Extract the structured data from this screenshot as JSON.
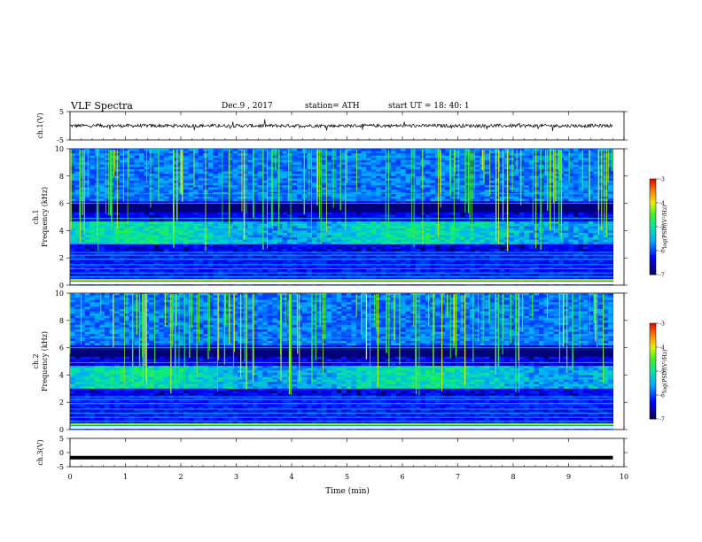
{
  "header": {
    "title": "VLF Spectra",
    "date": "Dec.9 , 2017",
    "station": "station= ATH",
    "start": "start UT = 18: 40: 1"
  },
  "colorbar_label": "log(PSD)(V²/Hz)",
  "colors": {
    "spectrogram_background": "#00007a",
    "trace": "#000000"
  },
  "chart_data": [
    {
      "type": "line",
      "name": "ch1-waveform",
      "ylabel": "ch.1(V)",
      "ylim": [
        -5,
        5
      ],
      "y_ticks": [
        "5",
        "-5"
      ],
      "xlim": [
        0,
        10
      ],
      "description_values": {
        "baseline": 0,
        "noise_amplitude": 0.6
      }
    },
    {
      "type": "heatmap",
      "name": "ch1-spectrogram",
      "ylabel": "ch.1\nFrequency (kHz)",
      "ylim": [
        0,
        10
      ],
      "y_ticks": [
        "0",
        "2",
        "4",
        "6",
        "8",
        "10"
      ],
      "xlim": [
        0,
        10
      ],
      "data_end_min": 9.8,
      "colorbar": {
        "min": -7,
        "max": -3,
        "ticks": [
          "-3",
          "-4",
          "-5",
          "-6",
          "-7"
        ]
      },
      "features": {
        "emission_band_khz": [
          3,
          4.6
        ],
        "emission_level": -5.2,
        "dark_band_khz": [
          5.3,
          6.0
        ],
        "lines_below_khz": 2.5,
        "sferic_level": -4.8
      }
    },
    {
      "type": "heatmap",
      "name": "ch2-spectrogram",
      "ylabel": "ch.2\nFrequency (kHz)",
      "ylim": [
        0,
        10
      ],
      "y_ticks": [
        "0",
        "2",
        "4",
        "6",
        "8",
        "10"
      ],
      "xlim": [
        0,
        10
      ],
      "data_end_min": 9.8,
      "colorbar": {
        "min": -7,
        "max": -3,
        "ticks": [
          "-3",
          "-4",
          "-5",
          "-6",
          "-7"
        ]
      },
      "features": {
        "emission_band_khz": [
          3,
          4.6
        ],
        "emission_level": -5.2,
        "dark_band_khz": [
          5.3,
          6.0
        ],
        "lines_below_khz": 2.5,
        "sferic_level": -4.8
      }
    },
    {
      "type": "line",
      "name": "ch3-waveform",
      "ylabel": "ch.3(V)",
      "ylim": [
        -5,
        5
      ],
      "y_ticks": [
        "5",
        "0",
        "-5"
      ],
      "xlim": [
        0,
        10
      ],
      "constant_value": -1.8
    }
  ],
  "x_axis": {
    "label": "Time (min)",
    "ticks": [
      "0",
      "1",
      "2",
      "3",
      "4",
      "5",
      "6",
      "7",
      "8",
      "9",
      "10"
    ],
    "range": [
      0,
      10
    ]
  }
}
